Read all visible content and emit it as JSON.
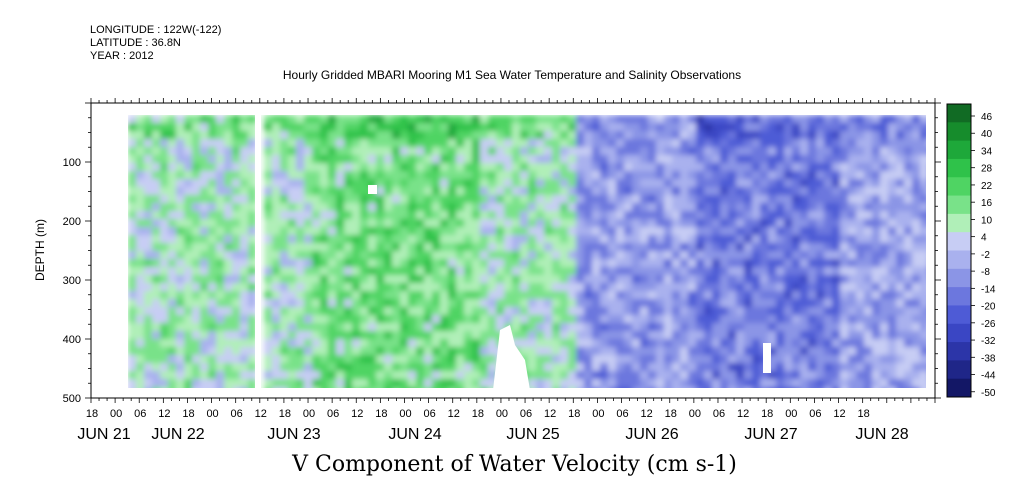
{
  "header": {
    "longitude": "LONGITUDE : 122W(-122)",
    "latitude": "LATITUDE : 36.8N",
    "year": "YEAR : 2012"
  },
  "chart_data": {
    "type": "heatmap",
    "title": "Hourly Gridded MBARI Mooring M1 Sea Water Temperature and Salinity Observations",
    "variable_title": "V Component of Water Velocity (cm s-1)",
    "ylabel": "DEPTH (m)",
    "ylim": [
      500,
      0
    ],
    "y_ticks": [
      100,
      200,
      300,
      400,
      500
    ],
    "x_hour_ticks": [
      "18",
      "00",
      "06",
      "12",
      "18",
      "00",
      "06",
      "12",
      "18",
      "00",
      "06",
      "12",
      "18",
      "00",
      "06",
      "12",
      "18",
      "00",
      "06",
      "12",
      "18",
      "00",
      "06",
      "12",
      "18",
      "00",
      "06",
      "12",
      "18",
      "00",
      "06",
      "12",
      "18"
    ],
    "x_day_labels": [
      "JUN 21",
      "JUN 22",
      "JUN 23",
      "JUN 24",
      "JUN 25",
      "JUN 26",
      "JUN 27",
      "JUN 28"
    ],
    "colorbar": {
      "levels": [
        "46",
        "40",
        "34",
        "28",
        "22",
        "16",
        "10",
        "4",
        "-2",
        "-8",
        "-14",
        "-20",
        "-26",
        "-32",
        "-38",
        "-44",
        "-50"
      ]
    },
    "field_description_bands": [
      {
        "start_hour": 0,
        "end_hour": 54,
        "mean_value": 6
      },
      {
        "start_hour": 54,
        "end_hour": 96,
        "mean_value": 14
      },
      {
        "start_hour": 96,
        "end_hour": 120,
        "mean_value": 6
      },
      {
        "start_hour": 120,
        "end_hour": 150,
        "mean_value": -10
      },
      {
        "start_hour": 150,
        "end_hour": 186,
        "mean_value": -16
      },
      {
        "start_hour": 186,
        "end_hour": 210,
        "mean_value": -8
      }
    ]
  }
}
